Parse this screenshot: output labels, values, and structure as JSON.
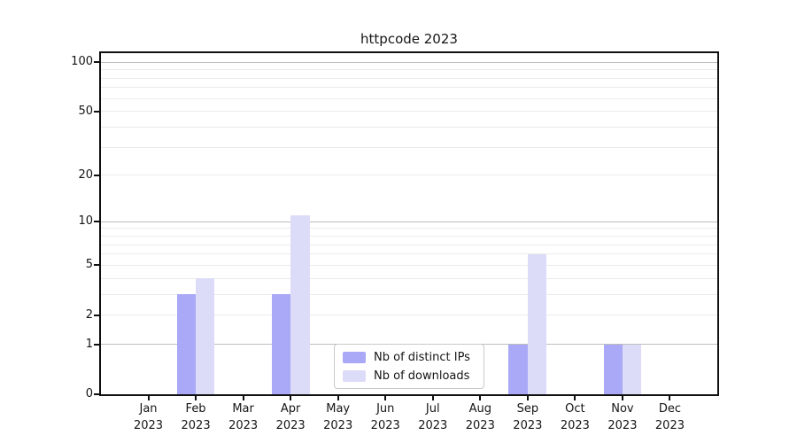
{
  "title": "httpcode 2023",
  "colors": {
    "axis": "#0f0f0f",
    "text": "#151515",
    "grid_major": "#bdbdbd",
    "grid_minor": "#ebebeb",
    "series_distinct_ips": "#a9a9f7",
    "series_downloads": "#dcdcf8",
    "legend_border": "#c9c9c9"
  },
  "chart_data": {
    "type": "bar",
    "title": "httpcode 2023",
    "xlabel": "",
    "ylabel": "",
    "x_categories": [
      {
        "month": "Jan",
        "year": "2023"
      },
      {
        "month": "Feb",
        "year": "2023"
      },
      {
        "month": "Mar",
        "year": "2023"
      },
      {
        "month": "Apr",
        "year": "2023"
      },
      {
        "month": "May",
        "year": "2023"
      },
      {
        "month": "Jun",
        "year": "2023"
      },
      {
        "month": "Jul",
        "year": "2023"
      },
      {
        "month": "Aug",
        "year": "2023"
      },
      {
        "month": "Sep",
        "year": "2023"
      },
      {
        "month": "Oct",
        "year": "2023"
      },
      {
        "month": "Nov",
        "year": "2023"
      },
      {
        "month": "Dec",
        "year": "2023"
      }
    ],
    "series": [
      {
        "name": "Nb of distinct IPs",
        "color": "#a9a9f7",
        "values": [
          0,
          3,
          0,
          3,
          0,
          0,
          0,
          0,
          1,
          0,
          1,
          0
        ]
      },
      {
        "name": "Nb of downloads",
        "color": "#dcdcf8",
        "values": [
          0,
          4,
          0,
          11,
          0,
          0,
          0,
          0,
          6,
          0,
          1,
          0
        ]
      }
    ],
    "y_axis": {
      "scale": "log1p",
      "ticks": [
        0,
        1,
        2,
        5,
        10,
        20,
        50,
        100
      ],
      "ylim": [
        0,
        113.5
      ],
      "grid_major": [
        1,
        10,
        100
      ],
      "grid_minor": [
        2,
        3,
        4,
        5,
        6,
        7,
        8,
        9,
        20,
        30,
        40,
        50,
        60,
        70,
        80,
        90
      ]
    },
    "legend_position": "lower center",
    "grid": "on"
  }
}
